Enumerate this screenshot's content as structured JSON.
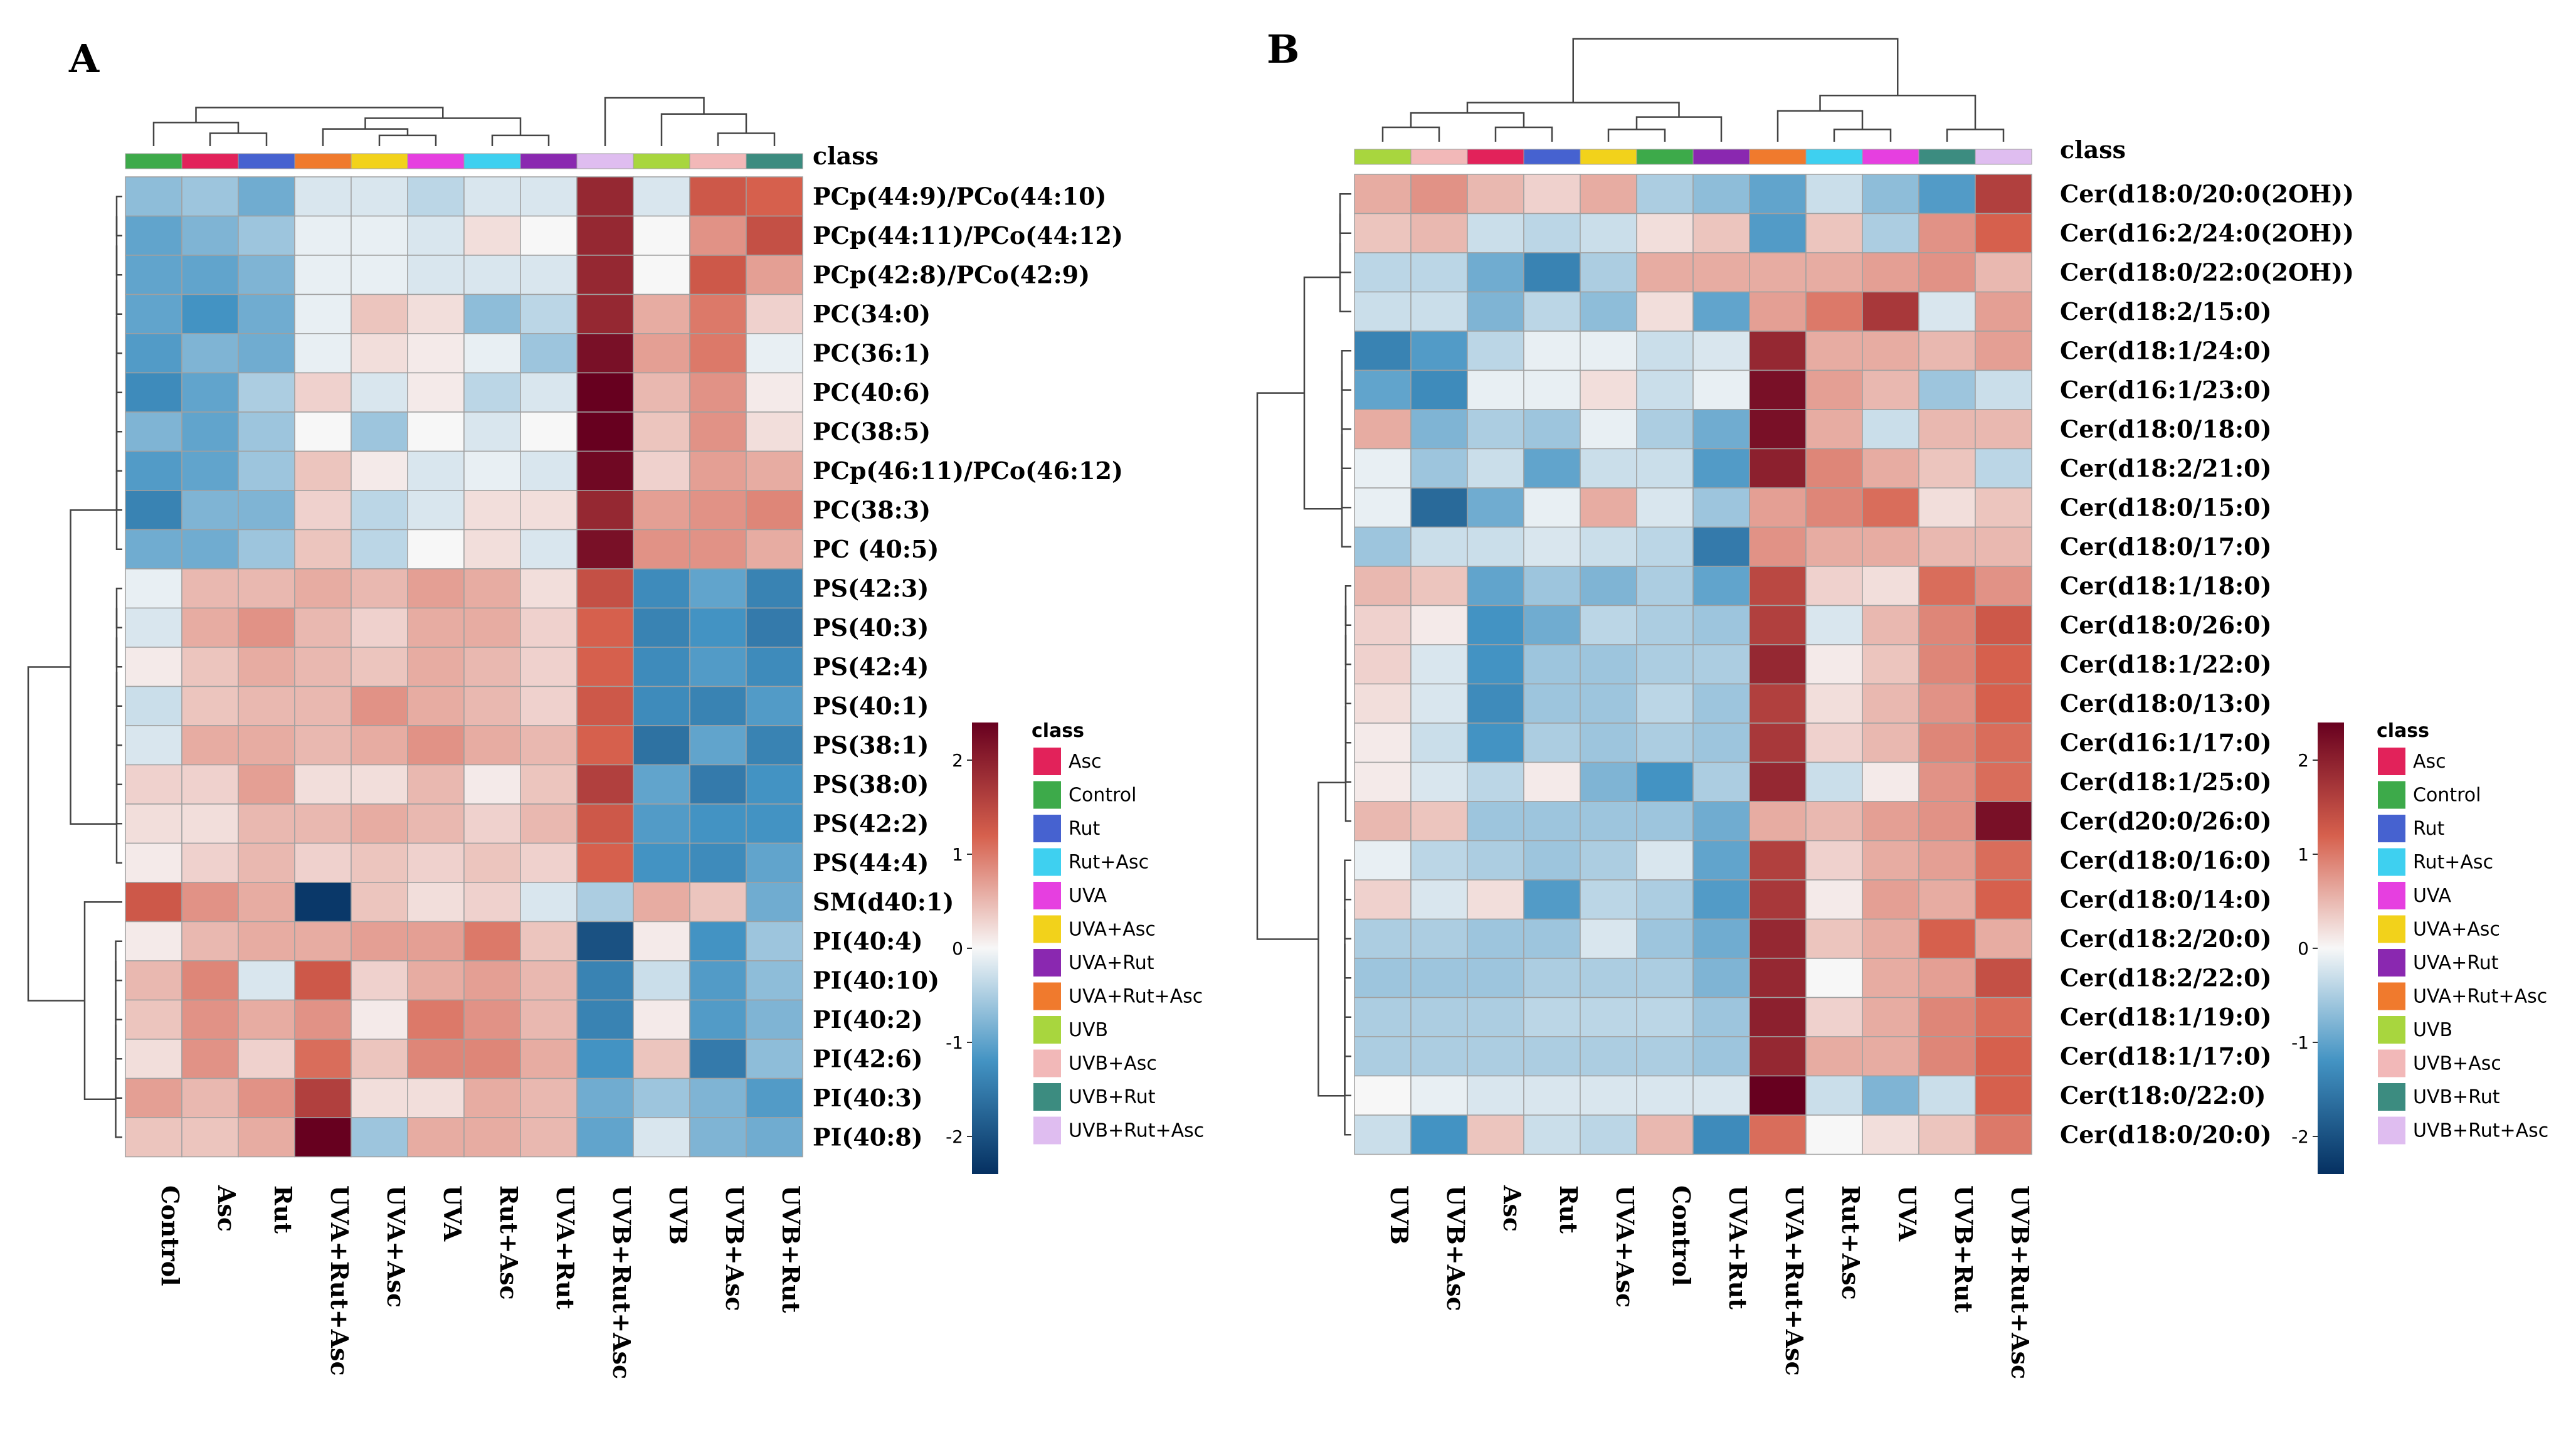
{
  "class_colors": {
    "Asc": "#e2225a",
    "Control": "#3daa4a",
    "Rut": "#4662d0",
    "Rut+Asc": "#3ed0f0",
    "UVA": "#e63fe0",
    "UVA+Asc": "#f2d21b",
    "UVA+Rut": "#8a28b0",
    "UVA+Rut+Asc": "#f07a2d",
    "UVB": "#a8d63e",
    "UVB+Asc": "#f2b8b8",
    "UVB+Rut": "#3c8c80",
    "UVB+Rut+Asc": "#dfbdf0"
  },
  "legend": {
    "title": "class",
    "entries": [
      "Asc",
      "Control",
      "Rut",
      "Rut+Asc",
      "UVA",
      "UVA+Asc",
      "UVA+Rut",
      "UVA+Rut+Asc",
      "UVB",
      "UVB+Asc",
      "UVB+Rut",
      "UVB+Rut+Asc"
    ],
    "scale_ticks": [
      "2",
      "1",
      "0",
      "-1",
      "-2"
    ],
    "scale_values": [
      2,
      1,
      0,
      -1,
      -2
    ],
    "scale_range": [
      -2.4,
      2.4
    ]
  },
  "chart_data": [
    {
      "panel": "A",
      "type": "heatmap",
      "title": "A",
      "class_header": "class",
      "columns": [
        "Control",
        "Asc",
        "Rut",
        "UVA+Rut+Asc",
        "UVA+Asc",
        "UVA",
        "Rut+Asc",
        "UVA+Rut",
        "UVB+Rut+Asc",
        "UVB",
        "UVB+Asc",
        "UVB+Rut"
      ],
      "rows": [
        "PCp(44:9)/PCo(44:10)",
        "PCp(44:11)/PCo(44:12)",
        "PCp(42:8)/PCo(42:9)",
        "PC(34:0)",
        "PC(36:1)",
        "PC(40:6)",
        "PC(38:5)",
        "PCp(46:11)/PCo(46:12)",
        "PC(38:3)",
        "PC (40:5)",
        "PS(42:3)",
        "PS(40:3)",
        "PS(42:4)",
        "PS(40:1)",
        "PS(38:1)",
        "PS(38:0)",
        "PS(42:2)",
        "PS(44:4)",
        "SM(d40:1)",
        "PI(40:4)",
        "PI(40:10)",
        "PI(40:2)",
        "PI(42:6)",
        "PI(40:3)",
        "PI(40:8)"
      ],
      "values": [
        [
          -0.7,
          -0.6,
          -0.9,
          -0.2,
          -0.2,
          -0.4,
          -0.2,
          -0.2,
          1.9,
          -0.2,
          1.3,
          1.2
        ],
        [
          -1.0,
          -0.8,
          -0.6,
          -0.1,
          -0.1,
          -0.2,
          0.2,
          0.0,
          1.9,
          0.0,
          0.8,
          1.4
        ],
        [
          -1.0,
          -1.0,
          -0.8,
          -0.1,
          -0.1,
          -0.2,
          -0.2,
          -0.2,
          1.9,
          0.0,
          1.3,
          0.7
        ],
        [
          -1.0,
          -1.2,
          -0.9,
          -0.1,
          0.4,
          0.2,
          -0.7,
          -0.4,
          1.9,
          0.6,
          1.0,
          0.3
        ],
        [
          -1.1,
          -0.8,
          -0.9,
          -0.1,
          0.2,
          0.1,
          -0.1,
          -0.6,
          2.2,
          0.7,
          1.0,
          -0.1
        ],
        [
          -1.3,
          -1.0,
          -0.5,
          0.3,
          -0.2,
          0.1,
          -0.4,
          -0.2,
          2.5,
          0.5,
          0.8,
          0.1
        ],
        [
          -0.8,
          -1.0,
          -0.6,
          0.0,
          -0.6,
          0.0,
          -0.2,
          0.0,
          2.5,
          0.4,
          0.8,
          0.2
        ],
        [
          -1.1,
          -1.0,
          -0.6,
          0.4,
          0.1,
          -0.2,
          -0.1,
          -0.2,
          2.3,
          0.3,
          0.7,
          0.6
        ],
        [
          -1.4,
          -0.8,
          -0.8,
          0.3,
          -0.4,
          -0.2,
          0.2,
          0.2,
          1.9,
          0.7,
          0.8,
          0.9
        ],
        [
          -0.9,
          -0.9,
          -0.6,
          0.4,
          -0.4,
          0.0,
          0.2,
          -0.2,
          2.2,
          0.8,
          0.8,
          0.6
        ],
        [
          -0.1,
          0.5,
          0.5,
          0.6,
          0.5,
          0.7,
          0.6,
          0.2,
          1.4,
          -1.3,
          -1.0,
          -1.4
        ],
        [
          -0.2,
          0.6,
          0.8,
          0.5,
          0.3,
          0.6,
          0.6,
          0.3,
          1.2,
          -1.4,
          -1.2,
          -1.5
        ],
        [
          0.1,
          0.4,
          0.6,
          0.5,
          0.4,
          0.6,
          0.5,
          0.3,
          1.2,
          -1.3,
          -1.1,
          -1.3
        ],
        [
          -0.3,
          0.4,
          0.5,
          0.5,
          0.8,
          0.6,
          0.5,
          0.3,
          1.3,
          -1.3,
          -1.4,
          -1.1
        ],
        [
          -0.2,
          0.6,
          0.6,
          0.5,
          0.6,
          0.8,
          0.6,
          0.5,
          1.2,
          -1.6,
          -1.0,
          -1.4
        ],
        [
          0.3,
          0.3,
          0.7,
          0.2,
          0.2,
          0.5,
          0.1,
          0.4,
          1.6,
          -1.0,
          -1.5,
          -1.2
        ],
        [
          0.2,
          0.2,
          0.5,
          0.5,
          0.6,
          0.5,
          0.3,
          0.5,
          1.3,
          -1.1,
          -1.2,
          -1.2
        ],
        [
          0.1,
          0.3,
          0.5,
          0.3,
          0.4,
          0.3,
          0.4,
          0.3,
          1.2,
          -1.2,
          -1.3,
          -1.0
        ],
        [
          1.3,
          0.8,
          0.6,
          -2.3,
          0.4,
          0.2,
          0.3,
          -0.2,
          -0.5,
          0.6,
          0.4,
          -0.9
        ],
        [
          0.1,
          0.5,
          0.6,
          0.6,
          0.7,
          0.7,
          1.0,
          0.4,
          -2.0,
          0.1,
          -1.2,
          -0.6
        ],
        [
          0.5,
          0.9,
          -0.2,
          1.3,
          0.3,
          0.6,
          0.7,
          0.5,
          -1.4,
          -0.3,
          -1.1,
          -0.7
        ],
        [
          0.4,
          0.8,
          0.6,
          0.8,
          0.1,
          1.0,
          0.8,
          0.5,
          -1.4,
          0.1,
          -1.1,
          -0.8
        ],
        [
          0.2,
          0.8,
          0.3,
          1.1,
          0.4,
          0.9,
          0.9,
          0.6,
          -1.2,
          0.4,
          -1.5,
          -0.7
        ],
        [
          0.7,
          0.5,
          0.8,
          1.6,
          0.2,
          0.2,
          0.6,
          0.5,
          -0.9,
          -0.6,
          -0.8,
          -1.1
        ],
        [
          0.4,
          0.4,
          0.6,
          2.5,
          -0.6,
          0.6,
          0.6,
          0.5,
          -1.0,
          -0.2,
          -0.8,
          -0.9
        ]
      ]
    },
    {
      "panel": "B",
      "type": "heatmap",
      "title": "B",
      "class_header": "class",
      "columns": [
        "UVB",
        "UVB+Asc",
        "Asc",
        "Rut",
        "UVA+Asc",
        "Control",
        "UVA+Rut",
        "UVA+Rut+Asc",
        "Rut+Asc",
        "UVA",
        "UVB+Rut",
        "UVB+Rut+Asc"
      ],
      "rows": [
        "Cer(d18:0/20:0(2OH))",
        "Cer(d16:2/24:0(2OH))",
        "Cer(d18:0/22:0(2OH))",
        "Cer(d18:2/15:0)",
        "Cer(d18:1/24:0)",
        "Cer(d16:1/23:0)",
        "Cer(d18:0/18:0)",
        "Cer(d18:2/21:0)",
        "Cer(d18:0/15:0)",
        "Cer(d18:0/17:0)",
        "Cer(d18:1/18:0)",
        "Cer(d18:0/26:0)",
        "Cer(d18:1/22:0)",
        "Cer(d18:0/13:0)",
        "Cer(d16:1/17:0)",
        "Cer(d18:1/25:0)",
        "Cer(d20:0/26:0)",
        "Cer(d18:0/16:0)",
        "Cer(d18:0/14:0)",
        "Cer(d18:2/20:0)",
        "Cer(d18:2/22:0)",
        "Cer(d18:1/19:0)",
        "Cer(d18:1/17:0)",
        "Cer(t18:0/22:0)",
        "Cer(d18:0/20:0)"
      ],
      "values": [
        [
          0.6,
          0.8,
          0.5,
          0.3,
          0.6,
          -0.5,
          -0.7,
          -1.0,
          -0.3,
          -0.7,
          -1.1,
          1.6
        ],
        [
          0.4,
          0.5,
          -0.3,
          -0.4,
          -0.3,
          0.2,
          0.4,
          -1.1,
          0.4,
          -0.5,
          0.8,
          1.2
        ],
        [
          -0.4,
          -0.4,
          -0.9,
          -1.4,
          -0.5,
          0.6,
          0.6,
          0.6,
          0.6,
          0.7,
          0.8,
          0.5
        ],
        [
          -0.3,
          -0.3,
          -0.8,
          -0.4,
          -0.7,
          0.2,
          -1.0,
          0.7,
          1.0,
          1.7,
          -0.2,
          0.7
        ],
        [
          -1.4,
          -1.1,
          -0.4,
          -0.1,
          -0.1,
          -0.3,
          -0.2,
          1.9,
          0.6,
          0.6,
          0.5,
          0.7
        ],
        [
          -1.0,
          -1.3,
          -0.1,
          -0.1,
          0.2,
          -0.3,
          -0.1,
          2.2,
          0.7,
          0.5,
          -0.6,
          -0.3
        ],
        [
          0.6,
          -0.8,
          -0.5,
          -0.6,
          -0.1,
          -0.5,
          -0.9,
          2.2,
          0.6,
          -0.3,
          0.5,
          0.5
        ],
        [
          -0.1,
          -0.6,
          -0.3,
          -1.0,
          -0.3,
          -0.3,
          -1.1,
          2.0,
          0.9,
          0.6,
          0.4,
          -0.4
        ],
        [
          -0.1,
          -1.7,
          -0.9,
          -0.1,
          0.6,
          -0.2,
          -0.6,
          0.7,
          0.9,
          1.1,
          0.2,
          0.4
        ],
        [
          -0.6,
          -0.3,
          -0.3,
          -0.2,
          -0.3,
          -0.4,
          -1.5,
          0.8,
          0.6,
          0.6,
          0.5,
          0.5
        ],
        [
          0.5,
          0.4,
          -1.0,
          -0.6,
          -0.8,
          -0.5,
          -1.0,
          1.5,
          0.3,
          0.2,
          1.1,
          0.8
        ],
        [
          0.3,
          0.1,
          -1.2,
          -0.9,
          -0.4,
          -0.5,
          -0.6,
          1.6,
          -0.2,
          0.5,
          0.9,
          1.3
        ],
        [
          0.3,
          -0.2,
          -1.2,
          -0.6,
          -0.6,
          -0.5,
          -0.5,
          1.9,
          0.1,
          0.4,
          0.9,
          1.2
        ],
        [
          0.2,
          -0.2,
          -1.3,
          -0.6,
          -0.6,
          -0.4,
          -0.6,
          1.6,
          0.2,
          0.5,
          0.8,
          1.2
        ],
        [
          0.1,
          -0.3,
          -1.2,
          -0.5,
          -0.6,
          -0.5,
          -0.6,
          1.7,
          0.3,
          0.5,
          0.9,
          1.1
        ],
        [
          0.1,
          -0.2,
          -0.4,
          0.1,
          -0.8,
          -1.2,
          -0.5,
          1.9,
          -0.3,
          0.1,
          0.8,
          1.1
        ],
        [
          0.5,
          0.4,
          -0.6,
          -0.6,
          -0.6,
          -0.6,
          -0.9,
          0.6,
          0.5,
          0.7,
          0.8,
          2.2
        ],
        [
          -0.1,
          -0.4,
          -0.5,
          -0.6,
          -0.5,
          -0.2,
          -1.0,
          1.6,
          0.3,
          0.6,
          0.7,
          1.1
        ],
        [
          0.3,
          -0.2,
          0.2,
          -1.1,
          -0.4,
          -0.5,
          -1.1,
          1.7,
          0.1,
          0.7,
          0.6,
          1.2
        ],
        [
          -0.5,
          -0.5,
          -0.6,
          -0.6,
          -0.2,
          -0.6,
          -0.9,
          1.9,
          0.4,
          0.6,
          1.2,
          0.6
        ],
        [
          -0.6,
          -0.6,
          -0.6,
          -0.5,
          -0.5,
          -0.5,
          -0.8,
          1.9,
          0.0,
          0.6,
          0.7,
          1.4
        ],
        [
          -0.5,
          -0.5,
          -0.5,
          -0.4,
          -0.4,
          -0.4,
          -0.6,
          2.0,
          0.3,
          0.6,
          0.9,
          1.1
        ],
        [
          -0.5,
          -0.5,
          -0.5,
          -0.5,
          -0.5,
          -0.5,
          -0.6,
          1.9,
          0.6,
          0.6,
          0.9,
          1.2
        ],
        [
          0.0,
          -0.1,
          -0.2,
          -0.2,
          -0.2,
          -0.2,
          -0.2,
          2.6,
          -0.3,
          -0.8,
          -0.3,
          1.2
        ],
        [
          -0.3,
          -1.2,
          0.4,
          -0.3,
          -0.4,
          0.5,
          -1.3,
          1.1,
          0.0,
          0.2,
          0.4,
          1.0
        ]
      ]
    }
  ]
}
